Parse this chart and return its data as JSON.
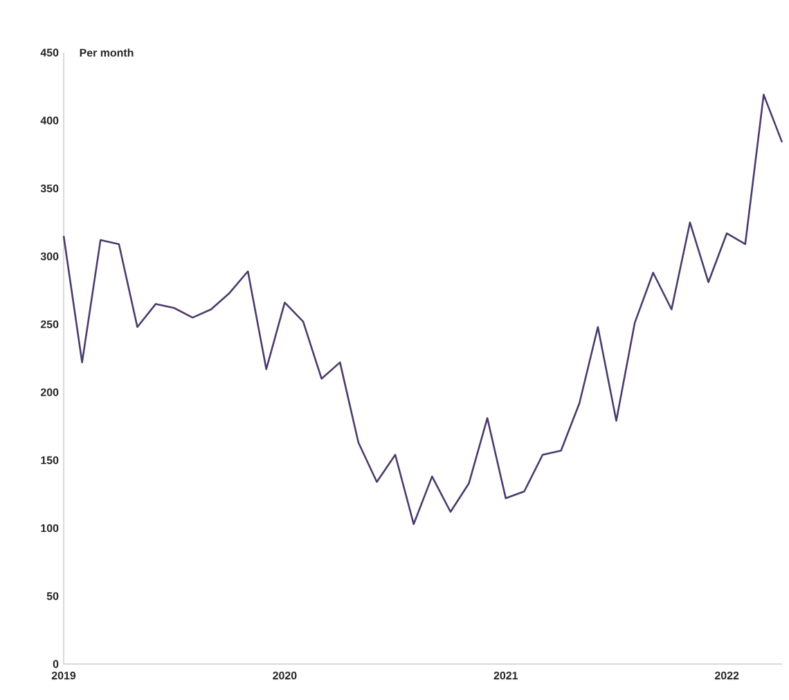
{
  "chart_data": {
    "type": "line",
    "ylabel": "Per month",
    "x": [
      "2019-01",
      "2019-02",
      "2019-03",
      "2019-04",
      "2019-05",
      "2019-06",
      "2019-07",
      "2019-08",
      "2019-09",
      "2019-10",
      "2019-11",
      "2019-12",
      "2020-01",
      "2020-02",
      "2020-03",
      "2020-04",
      "2020-05",
      "2020-06",
      "2020-07",
      "2020-08",
      "2020-09",
      "2020-10",
      "2020-11",
      "2020-12",
      "2021-01",
      "2021-02",
      "2021-03",
      "2021-04",
      "2021-05",
      "2021-06",
      "2021-07",
      "2021-08",
      "2021-09",
      "2021-10",
      "2021-11",
      "2021-12",
      "2022-01",
      "2022-02",
      "2022-03",
      "2022-04"
    ],
    "series": [
      {
        "color": "#4b3a6b",
        "values": [
          315,
          222,
          312,
          309,
          248,
          265,
          262,
          255,
          261,
          273,
          289,
          217,
          266,
          252,
          210,
          222,
          163,
          134,
          154,
          103,
          138,
          112,
          133,
          181,
          122,
          127,
          154,
          157,
          192,
          248,
          179,
          251,
          288,
          261,
          325,
          281,
          317,
          309,
          419,
          384
        ]
      }
    ],
    "xlim": [
      "2019-01",
      "2022-04"
    ],
    "xticks": [
      "2019",
      "2020",
      "2021",
      "2022"
    ],
    "ylim": [
      0,
      450
    ],
    "yticks": [
      0,
      50,
      100,
      150,
      200,
      250,
      300,
      350,
      400,
      450
    ],
    "grid": false,
    "legend": false,
    "marker": "none",
    "line_style": "solid"
  }
}
